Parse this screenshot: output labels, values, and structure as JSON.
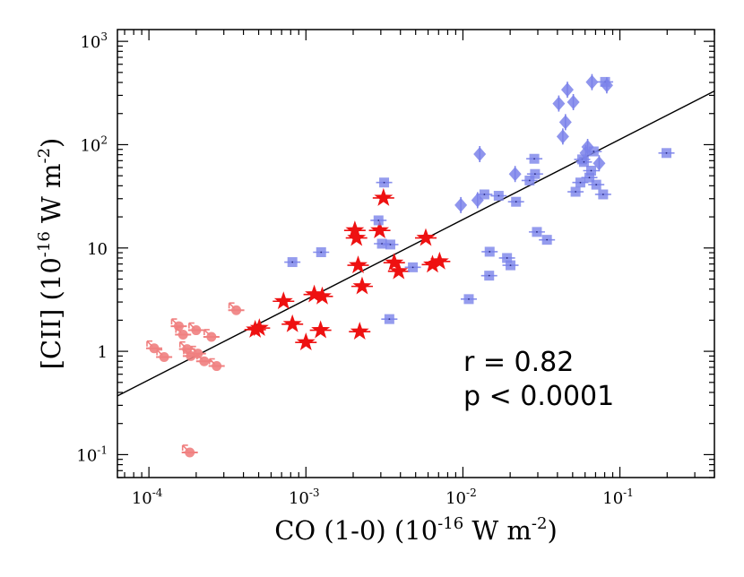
{
  "chart_data": {
    "type": "scatter",
    "xscale": "log",
    "yscale": "log",
    "xlim": [
      6.3e-05,
      0.4
    ],
    "ylim": [
      0.06,
      1300
    ],
    "xlabel_main": "CO (1-0) (10",
    "xlabel_exp": "-16",
    "xlabel_mid": " W m",
    "xlabel_exp2": "-2",
    "xlabel_end": ")",
    "ylabel_main": "[CII] (10",
    "ylabel_exp": "-16",
    "ylabel_mid": " W m",
    "ylabel_exp2": "-2",
    "ylabel_end": ")",
    "x_ticks": [
      {
        "value": 0.0001,
        "base": "10",
        "exp": "-4"
      },
      {
        "value": 0.001,
        "base": "10",
        "exp": "-3"
      },
      {
        "value": 0.01,
        "base": "10",
        "exp": "-2"
      },
      {
        "value": 0.1,
        "base": "10",
        "exp": "-1"
      }
    ],
    "y_ticks": [
      {
        "value": 0.1,
        "base": "10",
        "exp": "-1"
      },
      {
        "value": 1,
        "base": "1",
        "exp": ""
      },
      {
        "value": 10,
        "base": "10",
        "exp": ""
      },
      {
        "value": 100,
        "base": "10",
        "exp": "2"
      },
      {
        "value": 1000,
        "base": "10",
        "exp": "3"
      }
    ],
    "annotations": [
      "r = 0.82",
      "p < 0.0001"
    ],
    "fit_line": {
      "x": [
        6.3e-05,
        0.4
      ],
      "y": [
        0.37,
        330
      ]
    },
    "series": [
      {
        "name": "upper-limit circles",
        "color": "#f08080",
        "marker": "circle-limit",
        "points": [
          [
            0.000108,
            1.07
          ],
          [
            0.000125,
            0.88
          ],
          [
            0.000155,
            1.75
          ],
          [
            0.000165,
            1.45
          ],
          [
            0.000175,
            1.05
          ],
          [
            0.000185,
            0.9
          ],
          [
            0.0002,
            1.6
          ],
          [
            0.000205,
            0.95
          ],
          [
            0.000225,
            0.8
          ],
          [
            0.00025,
            1.38
          ],
          [
            0.00027,
            0.72
          ],
          [
            0.00036,
            2.5
          ],
          [
            0.000182,
            0.105
          ]
        ]
      },
      {
        "name": "red stars",
        "color": "#ee1111",
        "marker": "star",
        "points": [
          [
            0.000475,
            1.62
          ],
          [
            0.000505,
            1.68
          ],
          [
            0.00072,
            3.05
          ],
          [
            0.00082,
            1.83
          ],
          [
            0.001,
            1.22
          ],
          [
            0.00113,
            3.55
          ],
          [
            0.00124,
            1.6
          ],
          [
            0.00127,
            3.4
          ],
          [
            0.00205,
            14.8
          ],
          [
            0.0021,
            12.5
          ],
          [
            0.00215,
            6.8
          ],
          [
            0.0022,
            1.55
          ],
          [
            0.00228,
            4.25
          ],
          [
            0.00295,
            14.8
          ],
          [
            0.00312,
            30.5
          ],
          [
            0.00365,
            7.2
          ],
          [
            0.0039,
            5.95
          ],
          [
            0.0058,
            12.5
          ],
          [
            0.0064,
            6.9
          ],
          [
            0.0071,
            7.4
          ]
        ]
      },
      {
        "name": "blue squares",
        "color": "#7b83ea",
        "marker": "square",
        "points": [
          [
            0.00082,
            7.3
          ],
          [
            0.00125,
            9.1
          ],
          [
            0.0029,
            18.5
          ],
          [
            0.00305,
            11.0
          ],
          [
            0.00315,
            43.0
          ],
          [
            0.00345,
            10.8
          ],
          [
            0.0034,
            2.05
          ],
          [
            0.0048,
            6.5
          ],
          [
            0.0109,
            3.2
          ],
          [
            0.0137,
            33.0
          ],
          [
            0.0148,
            9.2
          ],
          [
            0.0147,
            5.4
          ],
          [
            0.0169,
            32.0
          ],
          [
            0.0191,
            8.0
          ],
          [
            0.0201,
            6.8
          ],
          [
            0.0218,
            28.0
          ],
          [
            0.0266,
            45.0
          ],
          [
            0.0285,
            73.0
          ],
          [
            0.0288,
            52.0
          ],
          [
            0.0296,
            14.3
          ],
          [
            0.0343,
            12.0
          ],
          [
            0.0522,
            35.0
          ],
          [
            0.056,
            43.0
          ],
          [
            0.0575,
            72.0
          ],
          [
            0.059,
            68.0
          ],
          [
            0.0639,
            48.0
          ],
          [
            0.0656,
            56.0
          ],
          [
            0.0681,
            86.0
          ],
          [
            0.0707,
            41.0
          ],
          [
            0.0782,
            33.0
          ],
          [
            0.0805,
            405.0
          ],
          [
            0.198,
            83.0
          ]
        ]
      },
      {
        "name": "blue diamonds",
        "color": "#7b83ea",
        "marker": "diamond",
        "points": [
          [
            0.0097,
            26.0
          ],
          [
            0.0124,
            29.0
          ],
          [
            0.0128,
            81.0
          ],
          [
            0.0215,
            52.0
          ],
          [
            0.0408,
            250.0
          ],
          [
            0.0433,
            120.0
          ],
          [
            0.045,
            165.0
          ],
          [
            0.0463,
            340.0
          ],
          [
            0.0505,
            258.0
          ],
          [
            0.0606,
            83.0
          ],
          [
            0.0623,
            95.0
          ],
          [
            0.0664,
            403.0
          ],
          [
            0.0738,
            66.0
          ],
          [
            0.0825,
            375.0
          ]
        ]
      }
    ]
  }
}
